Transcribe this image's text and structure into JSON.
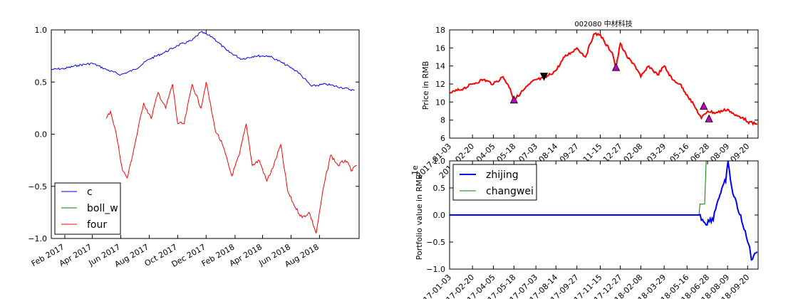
{
  "charts": [
    {
      "id": "left",
      "type": "line",
      "x_ticks": [
        "Feb 2017",
        "Apr 2017",
        "Jun 2017",
        "Aug 2017",
        "Oct 2017",
        "Dec 2017",
        "Feb 2018",
        "Apr 2018",
        "Jun 2018",
        "Aug 2018"
      ],
      "y_ticks": [
        "1.0",
        "0.5",
        "0.0",
        "−0.5",
        "−1.0"
      ],
      "ylim": [
        -1.0,
        1.0
      ],
      "legend": {
        "placement": "lower-left",
        "entries": [
          "c",
          "boll_w",
          "four"
        ]
      },
      "colors": {
        "c": "#0000ff",
        "boll_w": "#008000",
        "four": "#ff0000"
      },
      "series": [
        {
          "name": "c",
          "x": [
            "2017-01-03",
            "2017-02-01",
            "2017-03-01",
            "2017-04-01",
            "2017-05-01",
            "2017-06-01",
            "2017-07-01",
            "2017-08-01",
            "2017-09-01",
            "2017-10-01",
            "2017-11-01",
            "2017-11-20",
            "2017-12-15",
            "2018-01-15",
            "2018-02-15",
            "2018-03-15",
            "2018-04-15",
            "2018-05-15",
            "2018-06-15",
            "2018-07-15",
            "2018-08-15",
            "2018-09-15",
            "2018-10-15"
          ],
          "y": [
            0.62,
            0.63,
            0.66,
            0.68,
            0.62,
            0.57,
            0.62,
            0.72,
            0.78,
            0.85,
            0.9,
            0.98,
            0.93,
            0.8,
            0.72,
            0.75,
            0.75,
            0.68,
            0.6,
            0.46,
            0.48,
            0.45,
            0.42
          ]
        },
        {
          "name": "four",
          "x": [
            "2017-05-01",
            "2017-05-10",
            "2017-05-20",
            "2017-06-05",
            "2017-06-15",
            "2017-07-01",
            "2017-07-20",
            "2017-08-05",
            "2017-08-20",
            "2017-09-05",
            "2017-09-20",
            "2017-10-01",
            "2017-10-15",
            "2017-11-01",
            "2017-11-20",
            "2017-12-01",
            "2017-12-20",
            "2018-01-05",
            "2018-01-25",
            "2018-02-10",
            "2018-02-25",
            "2018-03-10",
            "2018-03-25",
            "2018-04-10",
            "2018-04-25",
            "2018-05-10",
            "2018-05-25",
            "2018-06-10",
            "2018-06-25",
            "2018-07-10",
            "2018-07-25",
            "2018-08-10",
            "2018-08-25",
            "2018-09-10",
            "2018-09-25",
            "2018-10-10",
            "2018-10-20"
          ],
          "y": [
            0.15,
            0.22,
            0.05,
            -0.35,
            -0.42,
            -0.1,
            0.3,
            0.15,
            0.4,
            0.25,
            0.48,
            0.1,
            0.1,
            0.48,
            0.25,
            0.5,
            0.05,
            -0.1,
            -0.4,
            -0.2,
            0.1,
            -0.3,
            -0.25,
            -0.45,
            -0.3,
            -0.1,
            -0.55,
            -0.7,
            -0.8,
            -0.75,
            -0.95,
            -0.5,
            -0.2,
            -0.3,
            -0.25,
            -0.35,
            -0.3
          ]
        },
        {
          "name": "boll_w",
          "x": [],
          "y": []
        }
      ]
    },
    {
      "id": "right-top",
      "type": "line",
      "title": "002080  中材科技",
      "ylabel": "Price in RMB",
      "x_ticks": [
        "2017-01-03",
        "2017-02-20",
        "2017-04-05",
        "2017-05-18",
        "2017-07-03",
        "2017-08-14",
        "2017-09-27",
        "2017-11-15",
        "2017-12-27",
        "2018-02-08",
        "2018-03-29",
        "2018-05-16",
        "2018-06-28",
        "2018-08-09",
        "2018-09-20"
      ],
      "y_ticks": [
        "18",
        "16",
        "14",
        "12",
        "10",
        "8",
        "6"
      ],
      "ylim": [
        6,
        18
      ],
      "colors": {
        "price": "#ff0000",
        "buy_marker": "#bf00bf",
        "sell_marker": "#000000"
      },
      "series": [
        {
          "name": "price",
          "x": [
            "2017-01-03",
            "2017-02-01",
            "2017-02-20",
            "2017-03-15",
            "2017-04-05",
            "2017-04-25",
            "2017-05-10",
            "2017-05-18",
            "2017-06-01",
            "2017-06-20",
            "2017-07-03",
            "2017-07-20",
            "2017-08-14",
            "2017-09-01",
            "2017-09-15",
            "2017-09-27",
            "2017-10-15",
            "2017-11-01",
            "2017-11-15",
            "2017-11-25",
            "2017-12-10",
            "2017-12-18",
            "2017-12-27",
            "2018-01-10",
            "2018-01-25",
            "2018-02-08",
            "2018-02-25",
            "2018-03-15",
            "2018-03-29",
            "2018-04-15",
            "2018-05-01",
            "2018-05-16",
            "2018-06-01",
            "2018-06-15",
            "2018-06-28",
            "2018-07-15",
            "2018-08-09",
            "2018-08-25",
            "2018-09-10",
            "2018-09-20",
            "2018-10-10"
          ],
          "y": [
            11.0,
            11.5,
            12.0,
            12.5,
            12.0,
            12.8,
            11.5,
            10.2,
            11.0,
            12.0,
            12.5,
            12.6,
            13.5,
            15.0,
            15.5,
            16.0,
            15.0,
            17.5,
            17.5,
            16.5,
            15.5,
            13.8,
            16.5,
            15.0,
            14.2,
            12.8,
            14.0,
            13.0,
            14.0,
            12.5,
            12.0,
            10.8,
            9.5,
            8.2,
            9.0,
            8.8,
            9.2,
            8.5,
            8.3,
            7.8,
            7.5
          ]
        }
      ],
      "markers": [
        {
          "kind": "buy",
          "x": "2017-05-18",
          "y": 10.2
        },
        {
          "kind": "sell",
          "x": "2017-07-20",
          "y": 12.9
        },
        {
          "kind": "buy",
          "x": "2017-12-18",
          "y": 13.8
        },
        {
          "kind": "buy",
          "x": "2018-06-20",
          "y": 9.5
        },
        {
          "kind": "buy",
          "x": "2018-07-01",
          "y": 8.1
        }
      ]
    },
    {
      "id": "right-bottom",
      "type": "line",
      "ylabel": "Portfolio value in RMB",
      "corner_label": "1e",
      "x_ticks": [
        "2017-01-03",
        "2017-02-20",
        "2017-04-05",
        "2017-05-18",
        "2017-07-03",
        "2017-08-14",
        "2017-09-27",
        "2017-11-15",
        "2017-12-27",
        "2018-02-08",
        "2018-03-29",
        "2018-05-16",
        "2018-06-28",
        "2018-08-09",
        "2018-09-20"
      ],
      "y_ticks": [
        "1.0",
        "0.5",
        "0.0",
        "−0.5",
        "−1.0"
      ],
      "ylim": [
        -1.0,
        1.0
      ],
      "legend": {
        "placement": "upper-left",
        "entries": [
          "zhijing",
          "changwei"
        ]
      },
      "colors": {
        "zhijing": "#0000ff",
        "changwei": "#008000"
      },
      "series": [
        {
          "name": "zhijing",
          "x": [
            "2017-01-03",
            "2018-06-10",
            "2018-06-15",
            "2018-06-25",
            "2018-07-10",
            "2018-07-20",
            "2018-07-28",
            "2018-08-05",
            "2018-08-10",
            "2018-08-20",
            "2018-09-01",
            "2018-09-10",
            "2018-09-20",
            "2018-09-28",
            "2018-10-10"
          ],
          "y": [
            0.0,
            0.0,
            -0.05,
            -0.15,
            -0.05,
            0.3,
            0.45,
            0.65,
            0.95,
            0.4,
            0.1,
            -0.2,
            -0.45,
            -0.8,
            -0.65
          ]
        },
        {
          "name": "changwei",
          "x": [
            "2017-01-03",
            "2018-06-10",
            "2018-06-12",
            "2018-06-22",
            "2018-06-25"
          ],
          "y": [
            0.0,
            0.0,
            0.2,
            0.2,
            1.0
          ]
        }
      ]
    }
  ]
}
